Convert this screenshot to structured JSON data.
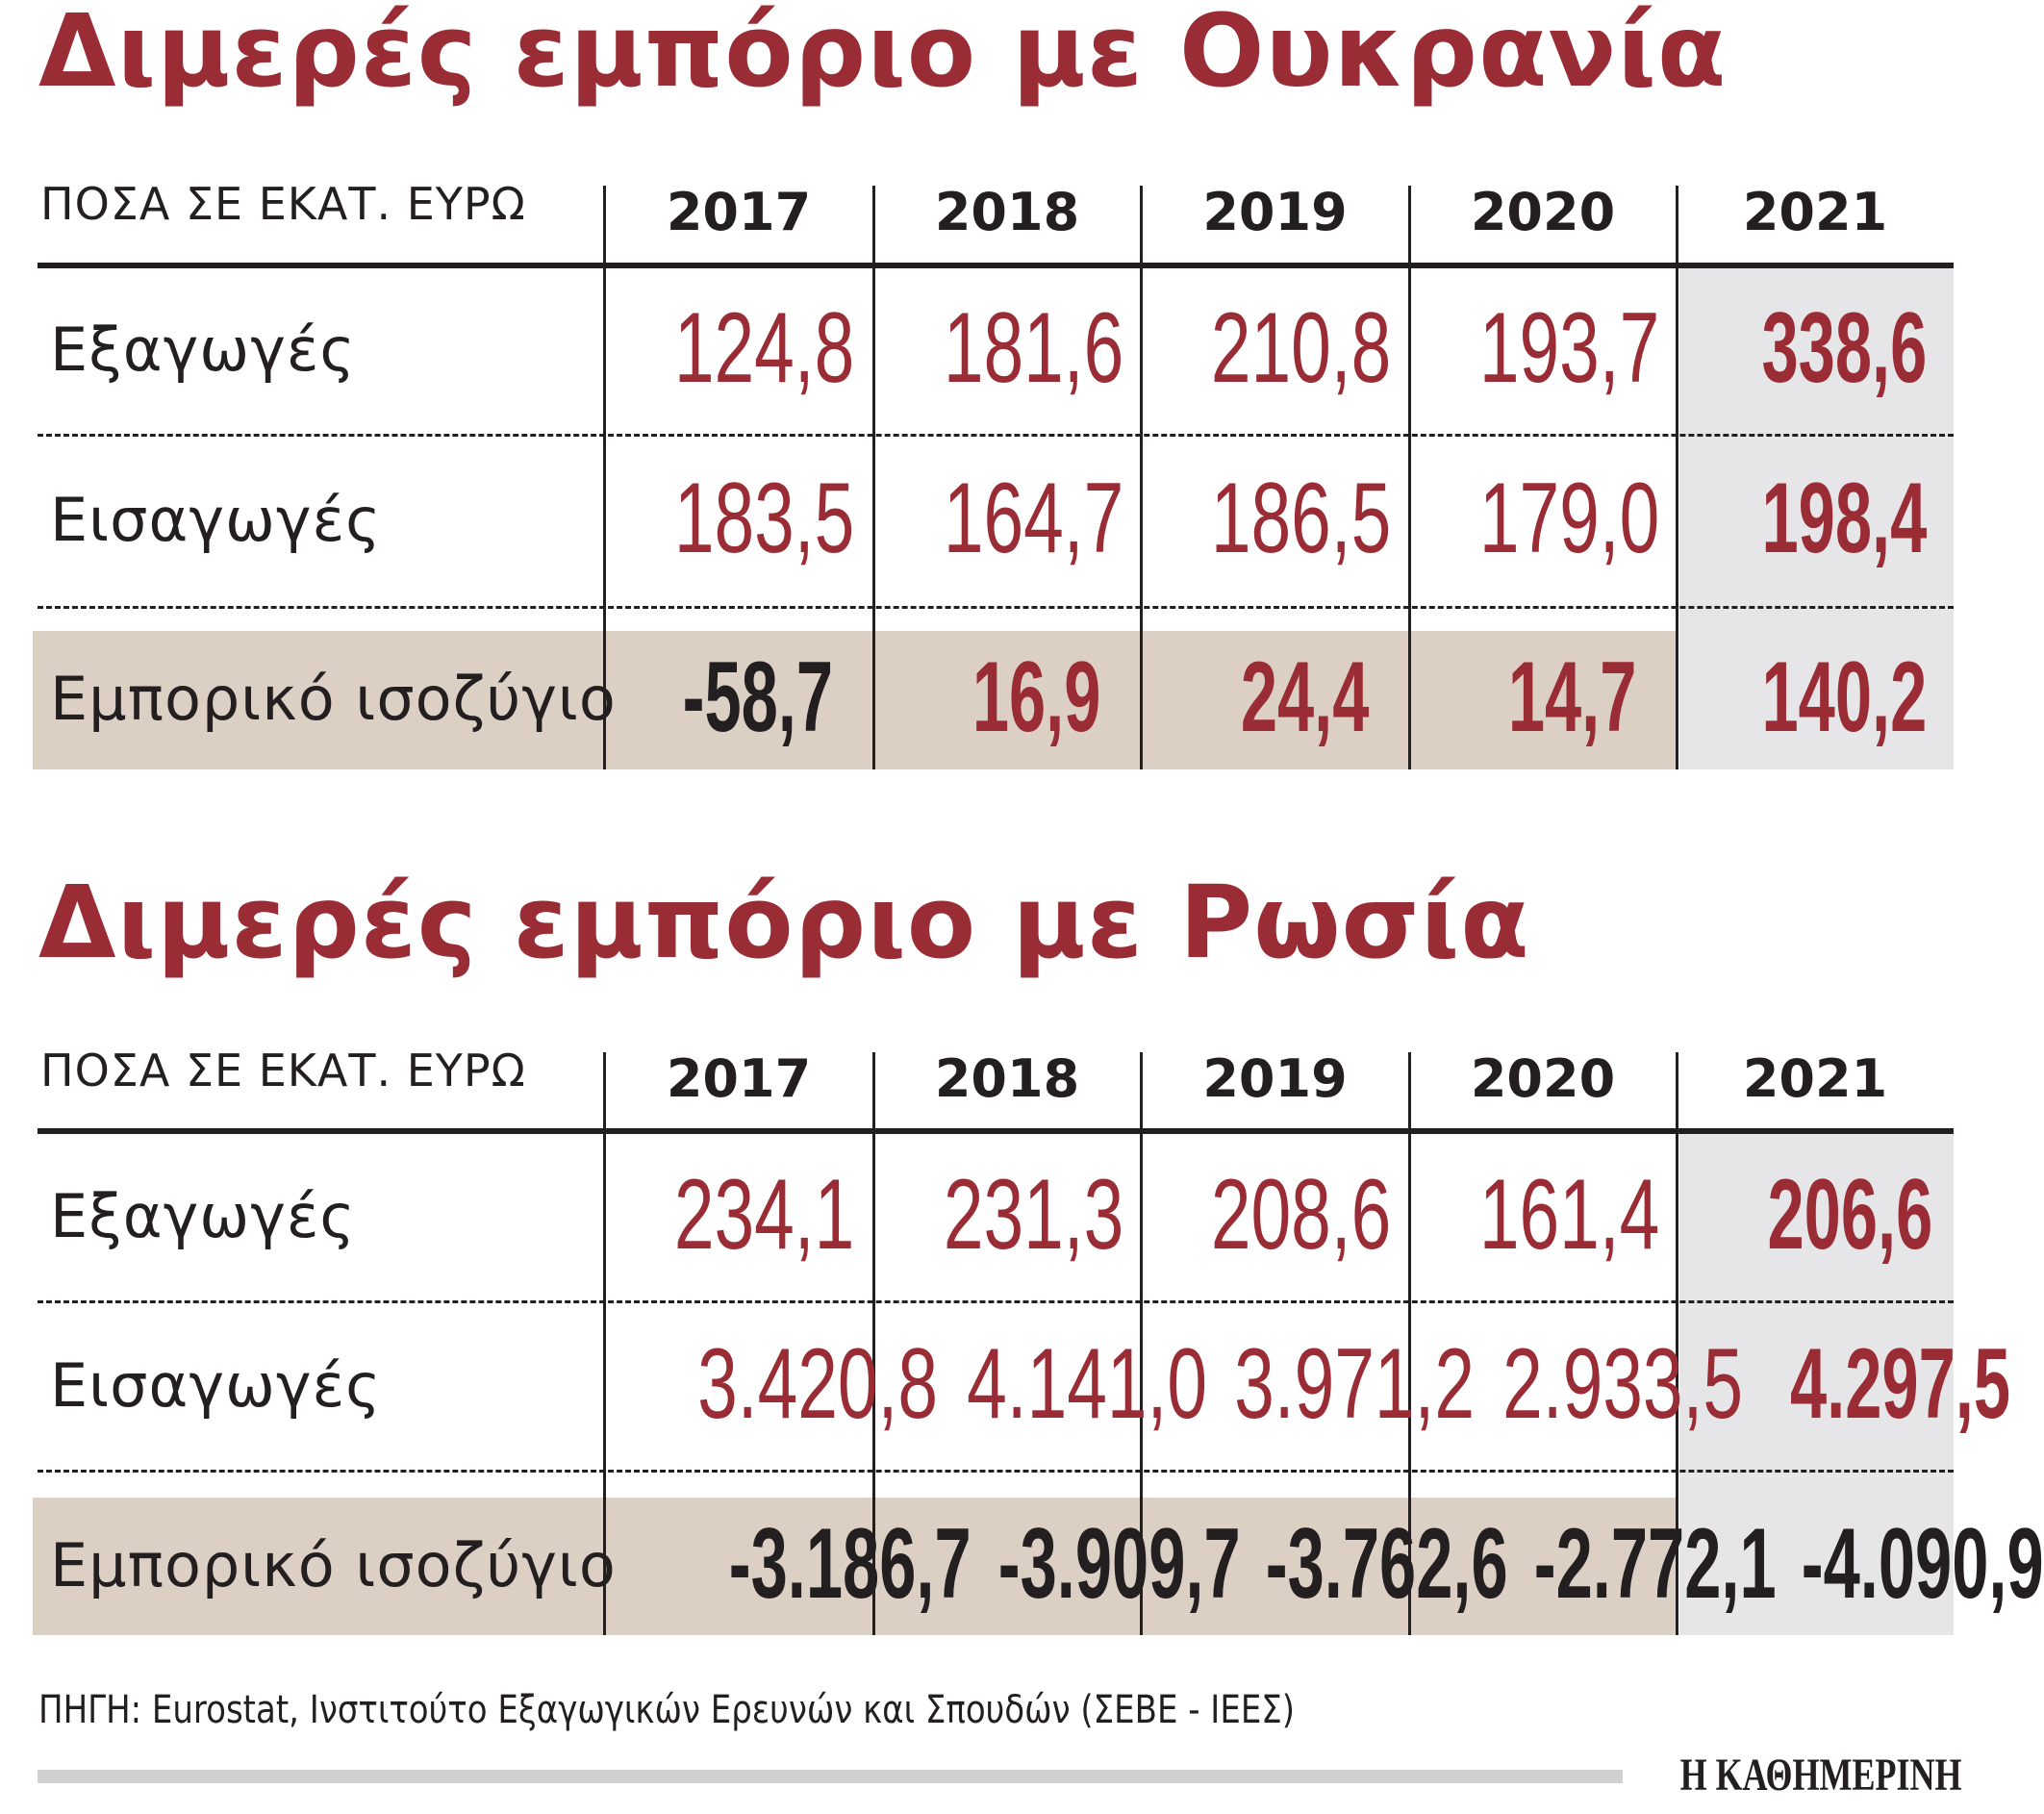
{
  "colors": {
    "accent_red": "#9a2c35",
    "text": "#231f20",
    "balance_band": "#dccfc4",
    "highlight_column": "#e6e6e8"
  },
  "tables": [
    {
      "title": "Διμερές εμπόριο με Ουκρανία",
      "unit_label": "ΠΟΣΑ ΣΕ ΕΚΑΤ. ΕΥΡΩ",
      "years": [
        "2017",
        "2018",
        "2019",
        "2020",
        "2021"
      ],
      "rows": [
        {
          "label": "Εξαγωγές",
          "values": [
            "124,8",
            "181,6",
            "210,8",
            "193,7",
            "338,6"
          ]
        },
        {
          "label": "Εισαγωγές",
          "values": [
            "183,5",
            "164,7",
            "186,5",
            "179,0",
            "198,4"
          ]
        },
        {
          "label": "Εμπορικό ισοζύγιο",
          "values": [
            "-58,7",
            "16,9",
            "24,4",
            "14,7",
            "140,2"
          ]
        }
      ]
    },
    {
      "title": "Διμερές εμπόριο με Ρωσία",
      "unit_label": "ΠΟΣΑ ΣΕ ΕΚΑΤ. ΕΥΡΩ",
      "years": [
        "2017",
        "2018",
        "2019",
        "2020",
        "2021"
      ],
      "rows": [
        {
          "label": "Εξαγωγές",
          "values": [
            "234,1",
            "231,3",
            "208,6",
            "161,4",
            "206,6"
          ]
        },
        {
          "label": "Εισαγωγές",
          "values": [
            "3.420,8",
            "4.141,0",
            "3.971,2",
            "2.933,5",
            "4.297,5"
          ]
        },
        {
          "label": "Εμπορικό ισοζύγιο",
          "values": [
            "-3.186,7",
            "-3.909,7",
            "-3.762,6",
            "-2.772,1",
            "-4.090,9"
          ]
        }
      ]
    }
  ],
  "footer": {
    "source": "ΠΗΓΗ: Eurostat, Ινστιτούτο Εξαγωγικών Ερευνών και Σπουδών (ΣΕΒΕ - ΙΕΕΣ)",
    "logo": "Η ΚΑΘΗΜΕΡΙΝΗ"
  }
}
